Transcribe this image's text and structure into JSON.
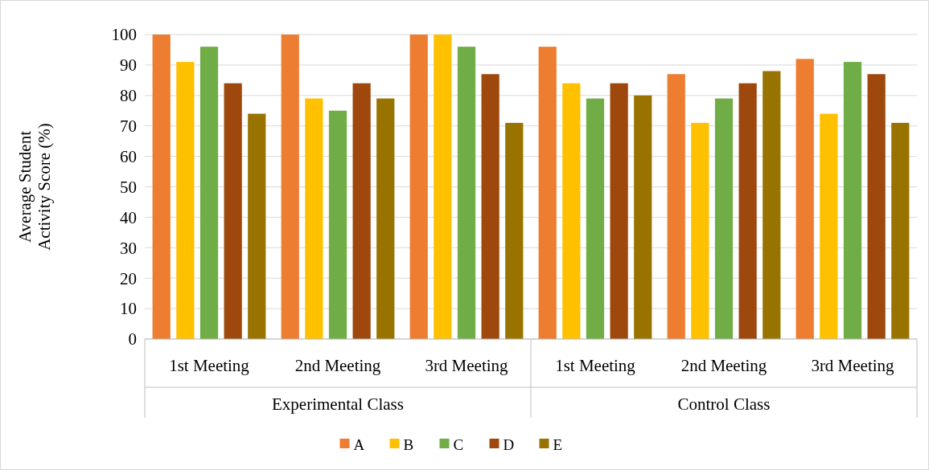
{
  "chart_data": {
    "type": "bar",
    "ylabel": "Average Student Activity Score (%)",
    "categories": [
      "1st Meeting",
      "2nd Meeting",
      "3rd Meeting",
      "1st Meeting",
      "2nd Meeting",
      "3rd Meeting"
    ],
    "annotations": [
      "Experimental Class",
      "Control Class"
    ],
    "series": [
      {
        "name": "A",
        "color": "#ed7d31",
        "values": [
          100,
          100,
          100,
          96,
          87,
          92
        ]
      },
      {
        "name": "B",
        "color": "#ffc000",
        "values": [
          91,
          79,
          100,
          84,
          71,
          74
        ]
      },
      {
        "name": "C",
        "color": "#70ad47",
        "values": [
          96,
          75,
          96,
          79,
          79,
          91
        ]
      },
      {
        "name": "D",
        "color": "#9e480e",
        "values": [
          84,
          84,
          87,
          84,
          84,
          87
        ]
      },
      {
        "name": "E",
        "color": "#997300",
        "values": [
          74,
          79,
          71,
          80,
          88,
          71
        ]
      }
    ],
    "ylim": [
      0,
      100
    ],
    "yticks": [
      0,
      10,
      20,
      30,
      40,
      50,
      60,
      70,
      80,
      90,
      100
    ],
    "grid": "y",
    "legend": "bottom"
  }
}
